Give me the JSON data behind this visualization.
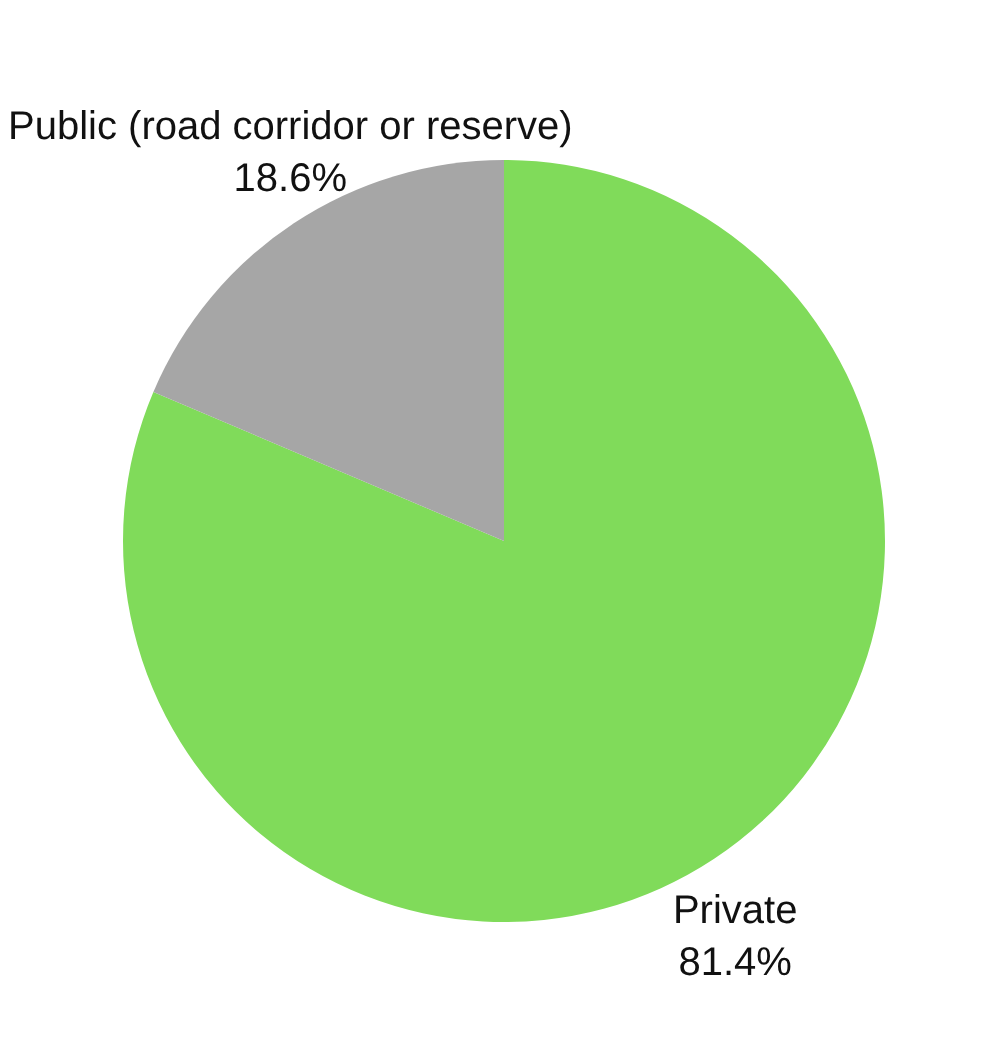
{
  "chart_data": {
    "type": "pie",
    "categories": [
      "Private",
      "Public (road corridor or reserve)"
    ],
    "values": [
      81.4,
      18.6
    ],
    "value_labels": [
      "81.4%",
      "18.6%"
    ],
    "colors": [
      "#80db5a",
      "#a6a6a6"
    ],
    "legend": false
  }
}
